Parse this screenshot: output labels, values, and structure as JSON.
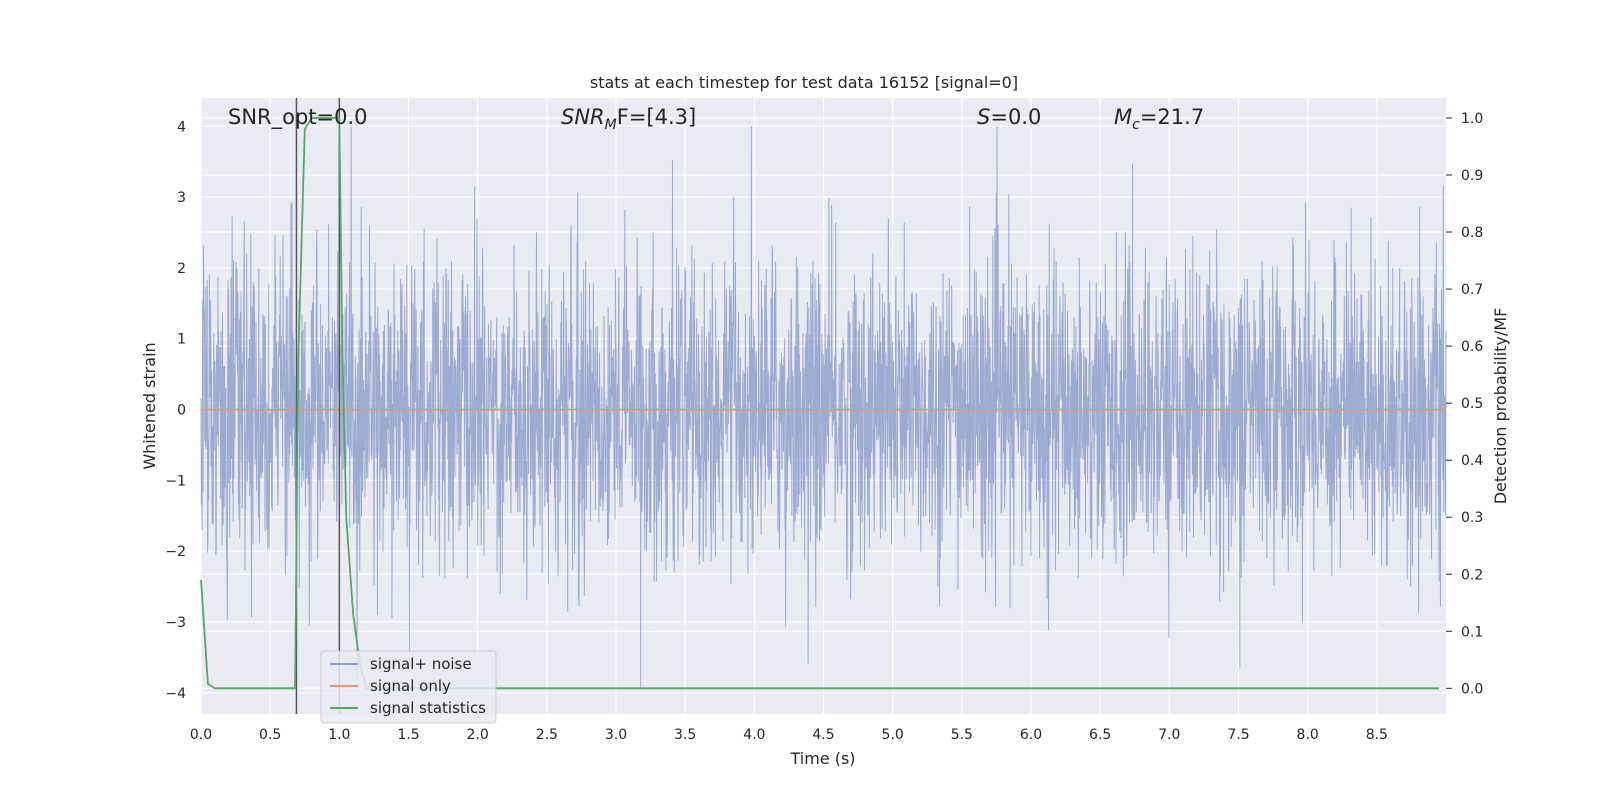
{
  "chart_data": {
    "type": "line",
    "title": "stats at each timestep for test data 16152 [signal=0]",
    "xlabel": "Time (s)",
    "ylabel": "Whitened strain",
    "y2label": "Detection probability/MF",
    "xlim": [
      0,
      9.0
    ],
    "ylim": [
      -4.3,
      4.4
    ],
    "y2lim": [
      -0.045,
      1.035
    ],
    "x_ticks": [
      "0.0",
      "0.5",
      "1.0",
      "1.5",
      "2.0",
      "2.5",
      "3.0",
      "3.5",
      "4.0",
      "4.5",
      "5.0",
      "5.5",
      "6.0",
      "6.5",
      "7.0",
      "7.5",
      "8.0",
      "8.5"
    ],
    "y_ticks": [
      "4",
      "3",
      "2",
      "1",
      "0",
      "−1",
      "−2",
      "−3",
      "−4"
    ],
    "y2_ticks": [
      "1.0",
      "0.9",
      "0.8",
      "0.7",
      "0.6",
      "0.5",
      "0.4",
      "0.3",
      "0.2",
      "0.1",
      "0.0"
    ],
    "grid": true,
    "legend_position": "lower-left",
    "annotations": {
      "snr_opt": "SNR_opt=0.0",
      "snr_mf_main": "SNR",
      "snr_mf_sub": "M",
      "snr_mf_rest": "F=[4.3]",
      "s_main": "S",
      "s_rest": "=0.0",
      "mc_main": "M",
      "mc_sub": "c",
      "mc_rest": "=21.7"
    },
    "vertical_lines_x": [
      0.69,
      1.0
    ],
    "series": [
      {
        "name": "signal+ noise",
        "color": "#8da0cb",
        "note": "dense whitened noise, amplitude approx ±2 with spikes up to ±4 over 0–9 s"
      },
      {
        "name": "signal only",
        "color": "#e5957a",
        "x": [
          0,
          9.0
        ],
        "y": [
          0,
          0
        ]
      },
      {
        "name": "signal statistics",
        "color": "#55a868",
        "axis": "right",
        "x": [
          0,
          0.05,
          0.1,
          0.15,
          0.2,
          0.3,
          0.4,
          0.5,
          0.6,
          0.68,
          0.69,
          0.7,
          0.75,
          0.8,
          0.85,
          0.9,
          0.95,
          1.0,
          1.02,
          1.05,
          1.1,
          1.15,
          1.2,
          1.3,
          2.0,
          3.0,
          4.0,
          5.0,
          6.0,
          7.0,
          8.0,
          8.95
        ],
        "y": [
          0.19,
          0.008,
          0.0,
          0.0,
          0.0,
          0.0,
          0.0,
          0.0,
          0.0,
          0.0,
          0.25,
          0.55,
          0.98,
          1.0,
          1.0,
          1.0,
          1.0,
          1.0,
          0.62,
          0.3,
          0.13,
          0.04,
          0.0,
          0.0,
          0.0,
          0.0,
          0.0,
          0.0,
          0.0,
          0.0,
          0.0,
          0.0
        ]
      }
    ]
  }
}
